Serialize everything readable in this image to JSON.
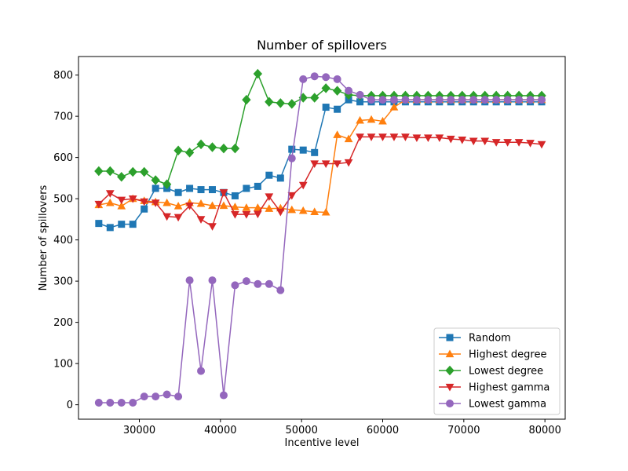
{
  "chart_data": {
    "type": "line",
    "title": "Number of spillovers",
    "xlabel": "Incentive level",
    "ylabel": "Number of spillovers",
    "xlim": [
      22500,
      82500
    ],
    "ylim": [
      -35,
      845
    ],
    "xticks": [
      30000,
      40000,
      50000,
      60000,
      70000,
      80000
    ],
    "yticks": [
      0,
      100,
      200,
      300,
      400,
      500,
      600,
      700,
      800
    ],
    "grid": false,
    "legend_position": "lower right",
    "x": [
      25000,
      26400,
      27800,
      29200,
      30600,
      32000,
      33400,
      34800,
      36200,
      37600,
      39000,
      40400,
      41800,
      43200,
      44600,
      46000,
      47400,
      48800,
      50200,
      51600,
      53000,
      54400,
      55800,
      57200,
      58600,
      60000,
      61400,
      62800,
      64200,
      65600,
      67000,
      68400,
      69800,
      71200,
      72600,
      74000,
      75400,
      76800,
      78200,
      79600
    ],
    "series": [
      {
        "name": "Random",
        "color": "#1f77b4",
        "marker": "square",
        "values": [
          440,
          430,
          438,
          438,
          475,
          525,
          525,
          515,
          525,
          522,
          522,
          515,
          507,
          525,
          530,
          557,
          550,
          620,
          618,
          612,
          722,
          717,
          740,
          735,
          735,
          735,
          735,
          735,
          735,
          735,
          735,
          735,
          735,
          735,
          735,
          735,
          735,
          735,
          735,
          735
        ]
      },
      {
        "name": "Highest degree",
        "color": "#ff7f0e",
        "marker": "triangle-up",
        "values": [
          485,
          490,
          482,
          500,
          495,
          492,
          490,
          482,
          490,
          488,
          483,
          483,
          480,
          478,
          478,
          476,
          477,
          473,
          471,
          468,
          467,
          655,
          645,
          690,
          692,
          688,
          722,
          740,
          740,
          740,
          740,
          740,
          740,
          740,
          740,
          740,
          740,
          740,
          740,
          740
        ]
      },
      {
        "name": "Lowest degree",
        "color": "#2ca02c",
        "marker": "diamond",
        "values": [
          567,
          567,
          553,
          565,
          565,
          545,
          535,
          617,
          612,
          632,
          625,
          622,
          622,
          740,
          803,
          735,
          732,
          730,
          745,
          745,
          768,
          762,
          752,
          750,
          750,
          750,
          750,
          750,
          750,
          750,
          750,
          750,
          750,
          750,
          750,
          750,
          750,
          750,
          750,
          750
        ]
      },
      {
        "name": "Highest gamma",
        "color": "#d62728",
        "marker": "triangle-down",
        "values": [
          487,
          513,
          497,
          500,
          493,
          490,
          457,
          455,
          483,
          450,
          433,
          515,
          462,
          462,
          463,
          505,
          468,
          508,
          533,
          585,
          585,
          585,
          588,
          650,
          650,
          650,
          650,
          650,
          648,
          648,
          648,
          645,
          643,
          640,
          640,
          637,
          637,
          637,
          635,
          632
        ]
      },
      {
        "name": "Lowest gamma",
        "color": "#9467bd",
        "marker": "circle",
        "values": [
          5,
          5,
          5,
          5,
          20,
          20,
          25,
          20,
          302,
          82,
          302,
          23,
          290,
          300,
          293,
          293,
          278,
          598,
          790,
          797,
          795,
          790,
          762,
          752,
          740,
          740,
          740,
          740,
          740,
          740,
          740,
          740,
          740,
          740,
          740,
          740,
          740,
          740,
          740,
          740
        ]
      }
    ]
  }
}
